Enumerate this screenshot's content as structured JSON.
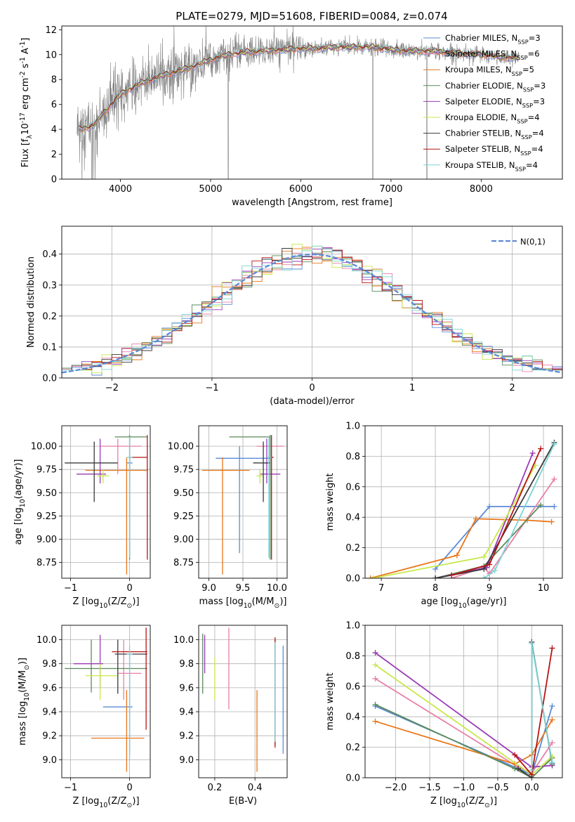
{
  "colors": {
    "Chabrier MILES": "#5b8bd6",
    "Salpeter MILES": "#e87fa8",
    "Kroupa MILES": "#e8771a",
    "Chabrier ELODIE": "#5a8a5a",
    "Salpeter ELODIE": "#9a3bb5",
    "Kroupa ELODIE": "#c8e84a",
    "Chabrier STELIB": "#3a3a3a",
    "Salpeter STELIB": "#b81414",
    "Kroupa STELIB": "#7dd3d3",
    "data": "#808080",
    "normal": "#5b8bd6"
  },
  "chart_data": [
    {
      "id": "spectrum",
      "type": "line",
      "title": "PLATE=0279, MJD=51608, FIBERID=0084, z=0.074",
      "xlabel": "wavelength [Angstrom, rest frame]",
      "ylabel": "Flux [f$_\\lambda$10$^{-17}$ erg cm$^{-2}$ s$^{-1}$ A$^{-1}$]",
      "xlim": [
        3350,
        8900
      ],
      "ylim": [
        0,
        12.3
      ],
      "xticks": [
        "4000",
        "5000",
        "6000",
        "7000",
        "8000"
      ],
      "yticks": [
        "0",
        "2",
        "4",
        "6",
        "8",
        "10",
        "12"
      ],
      "legend": [
        {
          "model": "Chabrier MILES",
          "label": "Chabrier MILES, N$_{SSP}$=3"
        },
        {
          "model": "Salpeter MILES",
          "label": "Salpeter MILES, N$_{SSP}$=6"
        },
        {
          "model": "Kroupa MILES",
          "label": "Kroupa MILES, N$_{SSP}$=5"
        },
        {
          "model": "Chabrier ELODIE",
          "label": "Chabrier ELODIE, N$_{SSP}$=3"
        },
        {
          "model": "Salpeter ELODIE",
          "label": "Salpeter ELODIE, N$_{SSP}$=3"
        },
        {
          "model": "Kroupa ELODIE",
          "label": "Kroupa ELODIE, N$_{SSP}$=4"
        },
        {
          "model": "Chabrier STELIB",
          "label": "Chabrier STELIB, N$_{SSP}$=4"
        },
        {
          "model": "Salpeter STELIB",
          "label": "Salpeter STELIB, N$_{SSP}$=4"
        },
        {
          "model": "Kroupa STELIB",
          "label": "Kroupa STELIB, N$_{SSP}$=4"
        }
      ],
      "legend_position": "right",
      "continuum": {
        "x": [
          3550,
          3700,
          3800,
          3900,
          4000,
          4100,
          4200,
          4300,
          4500,
          4700,
          4900,
          5000,
          5200,
          5400,
          5600,
          5800,
          6000,
          6200,
          6400,
          6600,
          6800,
          7000,
          7200,
          7400,
          7600,
          7800,
          8000,
          8200,
          8500
        ],
        "y": [
          4.0,
          4.3,
          5.2,
          6.0,
          6.8,
          7.2,
          7.6,
          7.9,
          8.4,
          8.8,
          9.3,
          9.6,
          10.0,
          10.2,
          10.3,
          10.4,
          10.5,
          10.5,
          10.6,
          10.6,
          10.6,
          10.4,
          10.3,
          10.3,
          10.2,
          10.1,
          10.0,
          9.8,
          9.7
        ]
      }
    },
    {
      "id": "residuals",
      "type": "histogram",
      "xlabel": "(data-model)/error",
      "ylabel": "Normed distribution",
      "xlim": [
        -2.5,
        2.5
      ],
      "ylim": [
        0,
        0.49
      ],
      "xticks": [
        "−2",
        "−1",
        "0",
        "1",
        "2"
      ],
      "yticks": [
        "0.0",
        "0.1",
        "0.2",
        "0.3",
        "0.4"
      ],
      "grid": true,
      "legend": "$\\mathcal{N}(0,1)$",
      "legend_position": "top-right"
    },
    {
      "id": "age-vs-Z",
      "type": "scatter",
      "xlabel": "Z [log$_{10}$(Z/Z$_\\odot$)]",
      "ylabel": "age  [log$_{10}$(age/yr)]",
      "xlim": [
        -1.15,
        0.35
      ],
      "ylim": [
        8.58,
        10.22
      ],
      "xticks": [
        "−1",
        "0"
      ],
      "yticks": [
        "8.75",
        "9.00",
        "9.25",
        "9.50",
        "9.75",
        "10.00"
      ],
      "grid": true,
      "points": [
        {
          "model": "Chabrier MILES",
          "x": 0.0,
          "y": 9.82,
          "xlo": -0.05,
          "xhi": 0.05,
          "ylo": 8.82,
          "yhi": 10.12
        },
        {
          "model": "Salpeter MILES",
          "x": -0.2,
          "y": 10.0,
          "xlo": -0.5,
          "xhi": 0.2,
          "ylo": 9.7,
          "yhi": 10.08
        },
        {
          "model": "Kroupa MILES",
          "x": -0.05,
          "y": 9.74,
          "xlo": -0.75,
          "xhi": 0.3,
          "ylo": 8.62,
          "yhi": 9.88
        },
        {
          "model": "Chabrier ELODIE",
          "x": 0.0,
          "y": 10.1,
          "xlo": -0.25,
          "xhi": 0.3,
          "ylo": 8.78,
          "yhi": 10.12
        },
        {
          "model": "Salpeter ELODIE",
          "x": -0.5,
          "y": 9.7,
          "xlo": -0.9,
          "xhi": -0.4,
          "ylo": 9.6,
          "yhi": 10.08
        },
        {
          "model": "Kroupa ELODIE",
          "x": -0.45,
          "y": 9.68,
          "xlo": -0.55,
          "xhi": -0.35,
          "ylo": 9.6,
          "yhi": 9.75
        },
        {
          "model": "Chabrier STELIB",
          "x": -0.6,
          "y": 9.82,
          "xlo": -1.1,
          "xhi": -0.2,
          "ylo": 9.4,
          "yhi": 10.05
        },
        {
          "model": "Salpeter STELIB",
          "x": 0.3,
          "y": 9.88,
          "xlo": 0.0,
          "xhi": 0.3,
          "ylo": 8.78,
          "yhi": 10.12
        },
        {
          "model": "Kroupa STELIB",
          "x": 0.0,
          "y": 9.88,
          "xlo": -0.05,
          "xhi": 0.05,
          "ylo": 8.8,
          "yhi": 10.1
        }
      ]
    },
    {
      "id": "age-vs-mass",
      "type": "scatter",
      "xlabel": "mass [log$_{10}$(M/M$_\\odot$)]",
      "ylabel": "",
      "xlim": [
        8.85,
        10.15
      ],
      "ylim": [
        8.58,
        10.22
      ],
      "xticks": [
        "9.0",
        "9.5",
        "10.0"
      ],
      "yticks": [
        "8.75",
        "9.00",
        "9.25",
        "9.50",
        "9.75",
        "10.00"
      ],
      "grid": true,
      "points": [
        {
          "model": "Chabrier MILES",
          "x": 9.45,
          "y": 9.87,
          "xlo": 9.1,
          "xhi": 9.9,
          "ylo": 8.85,
          "yhi": 10.0
        },
        {
          "model": "Salpeter MILES",
          "x": 9.9,
          "y": 10.0,
          "xlo": 9.7,
          "xhi": 10.1,
          "ylo": 9.7,
          "yhi": 10.12
        },
        {
          "model": "Kroupa MILES",
          "x": 9.2,
          "y": 9.74,
          "xlo": 8.9,
          "xhi": 9.6,
          "ylo": 8.62,
          "yhi": 9.88
        },
        {
          "model": "Chabrier ELODIE",
          "x": 9.9,
          "y": 10.1,
          "xlo": 9.3,
          "xhi": 9.9,
          "ylo": 8.78,
          "yhi": 10.12
        },
        {
          "model": "Salpeter ELODIE",
          "x": 9.85,
          "y": 9.7,
          "xlo": 9.75,
          "xhi": 10.05,
          "ylo": 9.6,
          "yhi": 10.08
        },
        {
          "model": "Kroupa ELODIE",
          "x": 9.75,
          "y": 9.68,
          "xlo": 9.7,
          "xhi": 9.8,
          "ylo": 9.6,
          "yhi": 9.75
        },
        {
          "model": "Chabrier STELIB",
          "x": 9.8,
          "y": 9.82,
          "xlo": 9.65,
          "xhi": 9.9,
          "ylo": 9.4,
          "yhi": 10.05
        },
        {
          "model": "Salpeter STELIB",
          "x": 9.92,
          "y": 9.88,
          "xlo": 9.88,
          "xhi": 9.95,
          "ylo": 8.78,
          "yhi": 10.12
        },
        {
          "model": "Kroupa STELIB",
          "x": 9.88,
          "y": 9.88,
          "xlo": 9.85,
          "xhi": 9.92,
          "ylo": 8.8,
          "yhi": 10.1
        }
      ]
    },
    {
      "id": "weight-vs-age",
      "type": "line",
      "xlabel": "age  [log$_{10}$(age/yr)]",
      "ylabel": "mass weight",
      "xlim": [
        6.7,
        10.35
      ],
      "ylim": [
        0,
        1.0
      ],
      "xticks": [
        "7",
        "8",
        "9",
        "10"
      ],
      "yticks": [
        "0.0",
        "0.2",
        "0.4",
        "0.6",
        "0.8",
        "1.0"
      ],
      "grid": true,
      "series": [
        {
          "model": "Chabrier MILES",
          "x": [
            8.0,
            9.0,
            10.2
          ],
          "y": [
            0.06,
            0.47,
            0.47
          ]
        },
        {
          "model": "Salpeter MILES",
          "x": [
            8.3,
            8.9,
            9.0,
            10.2
          ],
          "y": [
            0.0,
            0.07,
            0.03,
            0.65
          ]
        },
        {
          "model": "Kroupa MILES",
          "x": [
            6.8,
            8.4,
            8.75,
            9.7,
            10.15
          ],
          "y": [
            0.0,
            0.15,
            0.39,
            0.38,
            0.37
          ]
        },
        {
          "model": "Chabrier ELODIE",
          "x": [
            8.0,
            8.9,
            9.95
          ],
          "y": [
            0.0,
            0.08,
            0.48
          ]
        },
        {
          "model": "Salpeter ELODIE",
          "x": [
            8.0,
            8.95,
            9.8
          ],
          "y": [
            0.0,
            0.07,
            0.82
          ]
        },
        {
          "model": "Kroupa ELODIE",
          "x": [
            6.85,
            8.9,
            9.85
          ],
          "y": [
            0.0,
            0.14,
            0.74
          ]
        },
        {
          "model": "Chabrier STELIB",
          "x": [
            8.0,
            8.9,
            10.2
          ],
          "y": [
            0.0,
            0.06,
            0.89
          ]
        },
        {
          "model": "Salpeter STELIB",
          "x": [
            8.3,
            9.0,
            9.95
          ],
          "y": [
            0.02,
            0.09,
            0.85
          ]
        },
        {
          "model": "Kroupa STELIB",
          "x": [
            8.9,
            9.1,
            10.2
          ],
          "y": [
            0.0,
            0.05,
            0.88
          ]
        }
      ]
    },
    {
      "id": "mass-vs-Z",
      "type": "scatter",
      "xlabel": "Z [log$_{10}$(Z/Z$_\\odot$)]",
      "ylabel": "mass [log$_{10}$(M/M$_\\odot$)]",
      "xlim": [
        -1.15,
        0.35
      ],
      "ylim": [
        8.85,
        10.12
      ],
      "xticks": [
        "−1",
        "0"
      ],
      "yticks": [
        "9.0",
        "9.2",
        "9.4",
        "9.6",
        "9.8",
        "10.0"
      ],
      "grid": true,
      "points": [
        {
          "model": "Chabrier MILES",
          "x": 0.0,
          "y": 9.44,
          "xlo": -0.45,
          "xhi": 0.05,
          "ylo": 9.05,
          "yhi": 9.9
        },
        {
          "model": "Salpeter MILES",
          "x": -0.1,
          "y": 9.72,
          "xlo": -0.2,
          "xhi": 0.2,
          "ylo": 9.5,
          "yhi": 10.0
        },
        {
          "model": "Kroupa MILES",
          "x": -0.05,
          "y": 9.18,
          "xlo": -0.65,
          "xhi": 0.25,
          "ylo": 8.9,
          "yhi": 9.58
        },
        {
          "model": "Chabrier ELODIE",
          "x": -0.65,
          "y": 9.76,
          "xlo": -1.1,
          "xhi": 0.3,
          "ylo": 9.56,
          "yhi": 10.0
        },
        {
          "model": "Salpeter ELODIE",
          "x": -0.5,
          "y": 9.8,
          "xlo": -0.95,
          "xhi": -0.45,
          "ylo": 9.6,
          "yhi": 10.04
        },
        {
          "model": "Kroupa ELODIE",
          "x": -0.5,
          "y": 9.7,
          "xlo": -0.75,
          "xhi": -0.2,
          "ylo": 9.5,
          "yhi": 9.8
        },
        {
          "model": "Chabrier STELIB",
          "x": -0.2,
          "y": 9.88,
          "xlo": -0.25,
          "xhi": 0.3,
          "ylo": 9.55,
          "yhi": 10.0
        },
        {
          "model": "Salpeter STELIB",
          "x": 0.28,
          "y": 9.9,
          "xlo": -0.3,
          "xhi": 0.3,
          "ylo": 9.25,
          "yhi": 10.1
        },
        {
          "model": "Kroupa STELIB",
          "x": 0.0,
          "y": 9.88,
          "xlo": -0.05,
          "xhi": 0.05,
          "ylo": 9.0,
          "yhi": 9.95
        }
      ]
    },
    {
      "id": "mass-vs-EBV",
      "type": "scatter",
      "xlabel": "E(B-V)",
      "ylabel": "",
      "xlim": [
        0.12,
        0.56
      ],
      "ylim": [
        8.85,
        10.12
      ],
      "xticks": [
        "0.2",
        "0.4"
      ],
      "yticks": [
        "9.0",
        "9.2",
        "9.4",
        "9.6",
        "9.8",
        "10.0"
      ],
      "grid": true,
      "points": [
        {
          "model": "Chabrier MILES",
          "x": 0.54,
          "y": 9.5,
          "ylo": 9.05,
          "yhi": 9.95
        },
        {
          "model": "Salpeter MILES",
          "x": 0.27,
          "y": 9.77,
          "ylo": 9.42,
          "yhi": 10.1
        },
        {
          "model": "Kroupa MILES",
          "x": 0.41,
          "y": 9.24,
          "ylo": 8.9,
          "yhi": 9.58
        },
        {
          "model": "Chabrier ELODIE",
          "x": 0.14,
          "y": 9.8,
          "ylo": 9.55,
          "yhi": 10.05
        },
        {
          "model": "Salpeter ELODIE",
          "x": 0.15,
          "y": 9.88,
          "ylo": 9.72,
          "yhi": 10.04
        },
        {
          "model": "Kroupa ELODIE",
          "x": 0.2,
          "y": 9.68,
          "ylo": 9.5,
          "yhi": 9.85
        },
        {
          "model": "Chabrier STELIB",
          "x": 0.5,
          "y": 9.55,
          "ylo": 9.12,
          "yhi": 10.0
        },
        {
          "model": "Salpeter STELIB",
          "x": 0.5,
          "y": 9.55,
          "ylo": 9.1,
          "yhi": 10.02
        },
        {
          "model": "Kroupa STELIB",
          "x": 0.5,
          "y": 9.55,
          "ylo": 9.15,
          "yhi": 9.98
        }
      ]
    },
    {
      "id": "weight-vs-Z",
      "type": "line",
      "xlabel": "Z [log$_{10}$(Z/Z$_\\odot$)]",
      "ylabel": "mass weight",
      "xlim": [
        -2.45,
        0.45
      ],
      "ylim": [
        0,
        1.0
      ],
      "xticks": [
        "−2.0",
        "−1.5",
        "−1.0",
        "−0.5",
        "0.0"
      ],
      "yticks": [
        "0.0",
        "0.2",
        "0.4",
        "0.6",
        "0.8",
        "1.0"
      ],
      "grid": true,
      "series": [
        {
          "model": "Chabrier MILES",
          "x": [
            -2.3,
            -0.2,
            0.0,
            0.3
          ],
          "y": [
            0.47,
            0.06,
            0.02,
            0.47
          ]
        },
        {
          "model": "Salpeter MILES",
          "x": [
            -2.3,
            -0.2,
            0.0,
            0.3
          ],
          "y": [
            0.65,
            0.07,
            0.03,
            0.23
          ]
        },
        {
          "model": "Kroupa MILES",
          "x": [
            -2.3,
            -0.25,
            0.0,
            0.3
          ],
          "y": [
            0.37,
            0.09,
            0.15,
            0.38
          ]
        },
        {
          "model": "Chabrier ELODIE",
          "x": [
            -2.3,
            -0.25,
            0.0,
            0.3
          ],
          "y": [
            0.48,
            0.06,
            0.0,
            0.13
          ]
        },
        {
          "model": "Salpeter ELODIE",
          "x": [
            -2.3,
            0.0,
            0.3
          ],
          "y": [
            0.82,
            0.07,
            0.08
          ]
        },
        {
          "model": "Kroupa ELODIE",
          "x": [
            -2.3,
            0.0,
            0.3
          ],
          "y": [
            0.74,
            0.02,
            0.14
          ]
        },
        {
          "model": "Chabrier STELIB",
          "x": [
            -0.2,
            0.0,
            0.0,
            0.3
          ],
          "y": [
            0.06,
            0.0,
            0.89,
            0.09
          ]
        },
        {
          "model": "Salpeter STELIB",
          "x": [
            -0.25,
            0.0,
            0.3
          ],
          "y": [
            0.15,
            0.02,
            0.85
          ]
        },
        {
          "model": "Kroupa STELIB",
          "x": [
            0.0,
            0.0,
            0.3
          ],
          "y": [
            0.05,
            0.88,
            0.1
          ]
        }
      ]
    }
  ]
}
